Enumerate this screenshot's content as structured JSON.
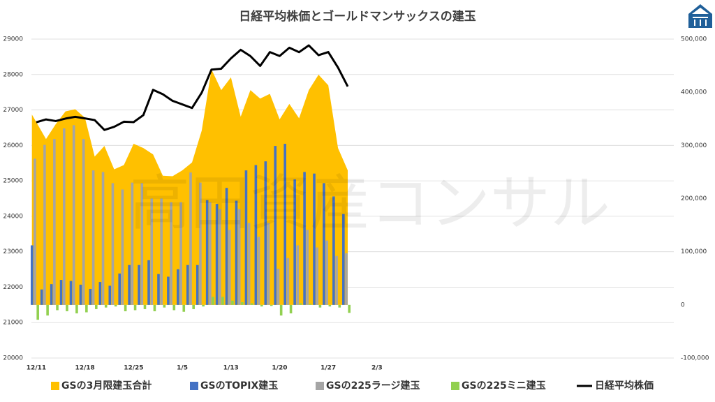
{
  "chart_data": {
    "type": "combo",
    "title": "日経平均株価とゴールドマンサックスの建玉",
    "watermark": "高田資産コンサル",
    "categories": [
      "12/11",
      null,
      null,
      null,
      null,
      "12/18",
      null,
      null,
      null,
      null,
      "12/25",
      null,
      null,
      null,
      null,
      "1/5",
      null,
      null,
      null,
      null,
      "1/13",
      null,
      null,
      null,
      null,
      "1/20",
      null,
      null,
      null,
      null,
      "1/27",
      null,
      null,
      null,
      null,
      "2/3",
      null,
      null,
      null,
      null,
      null,
      null,
      null,
      null,
      null,
      null,
      null,
      null,
      null,
      null,
      null,
      null,
      null,
      null,
      null,
      null,
      null,
      null,
      null,
      null,
      null,
      null,
      null,
      null,
      null,
      null
    ],
    "ylim": [
      20000,
      29000
    ],
    "yticks": [
      20000,
      21000,
      22000,
      23000,
      24000,
      25000,
      26000,
      27000,
      28000,
      29000
    ],
    "y2lim": [
      -100000,
      500000
    ],
    "y2ticks": [
      {
        "value": -100000,
        "label": "-100,000",
        "color": "#e00000"
      },
      {
        "value": 0,
        "label": "0"
      },
      {
        "value": 100000,
        "label": "100,000"
      },
      {
        "value": 200000,
        "label": "200,000"
      },
      {
        "value": 300000,
        "label": "300,000"
      },
      {
        "value": 400000,
        "label": "400,000"
      },
      {
        "value": 500000,
        "label": "500,000"
      }
    ],
    "grid": true,
    "legend": "bottom",
    "series": [
      {
        "name": "GSの3月限建玉合計",
        "type": "area",
        "axis": "y2",
        "color": "#ffc000",
        "values": [
          358000,
          312000,
          340000,
          364000,
          368000,
          352000,
          279000,
          299000,
          255000,
          263000,
          303000,
          295000,
          283000,
          243000,
          242000,
          253000,
          268000,
          328000,
          443000,
          404000,
          428000,
          354000,
          404000,
          388000,
          397000,
          349000,
          378000,
          351000,
          404000,
          433000,
          413000,
          295000,
          253000,
          null,
          null,
          null,
          null,
          null,
          null,
          null,
          null,
          null,
          null,
          null,
          null,
          null,
          null,
          null,
          null,
          null,
          null,
          null,
          null,
          null,
          null,
          null,
          null,
          null,
          null,
          null,
          null,
          null,
          null,
          null,
          null,
          null
        ]
      },
      {
        "name": "GSのTOPIX建玉",
        "type": "bar",
        "axis": "y2",
        "color": "#4472c4",
        "values": [
          112000,
          29000,
          39000,
          47000,
          45000,
          38000,
          30000,
          43000,
          36000,
          59000,
          75000,
          75000,
          84000,
          58000,
          53000,
          67000,
          75000,
          75000,
          197000,
          190000,
          220000,
          196000,
          253000,
          263000,
          270000,
          299000,
          303000,
          236000,
          250000,
          247000,
          229000,
          204000,
          171000,
          null,
          null,
          null,
          null,
          null,
          null,
          null,
          null,
          null,
          null,
          null,
          null,
          null,
          null,
          null,
          null,
          null,
          null,
          null,
          null,
          null,
          null,
          null,
          null,
          null,
          null,
          null,
          null,
          null,
          null,
          null,
          null,
          null
        ]
      },
      {
        "name": "GSの225ラージ建玉",
        "type": "bar",
        "axis": "y2",
        "color": "#a5a5a5",
        "values": [
          275000,
          301000,
          312000,
          332000,
          338000,
          312000,
          253000,
          250000,
          229000,
          217000,
          230000,
          229000,
          200000,
          200000,
          193000,
          193000,
          249000,
          230000,
          193000,
          180000,
          141000,
          180000,
          154000,
          128000,
          154000,
          68000,
          88000,
          112000,
          141000,
          108000,
          121000,
          92000,
          97000,
          null,
          null,
          null,
          null,
          null,
          null,
          null,
          null,
          null,
          null,
          null,
          null,
          null,
          null,
          null,
          null,
          null,
          null,
          null,
          null,
          null,
          null,
          null,
          null,
          null,
          null,
          null,
          null,
          null,
          null,
          null,
          null,
          null
        ]
      },
      {
        "name": "GSの225ミニ建玉",
        "type": "bar",
        "axis": "y2",
        "color": "#92d050",
        "values": [
          -28000,
          -20000,
          -10000,
          -12000,
          -16000,
          -14000,
          -8000,
          -5000,
          -3000,
          -12000,
          -10000,
          -8000,
          -12000,
          -5000,
          -10000,
          -13000,
          -8000,
          -3000,
          15000,
          15000,
          8000,
          5000,
          3000,
          -3000,
          -2000,
          -20000,
          -16000,
          3000,
          2000,
          -5000,
          -3000,
          -5000,
          -15000,
          null,
          null,
          null,
          null,
          null,
          null,
          null,
          null,
          null,
          null,
          null,
          null,
          null,
          null,
          null,
          null,
          null,
          null,
          null,
          null,
          null,
          null,
          null,
          null,
          null,
          null,
          null,
          null,
          null,
          null,
          null,
          null,
          null
        ]
      },
      {
        "name": "日経平均株価",
        "type": "line",
        "axis": "y",
        "color": "#000000",
        "values": [
          26652,
          26733,
          26687,
          26757,
          26806,
          26763,
          26714,
          26436,
          26524,
          26668,
          26656,
          26854,
          27568,
          27444,
          27258,
          27158,
          27055,
          27490,
          28139,
          28164,
          28456,
          28698,
          28519,
          28242,
          28633,
          28523,
          28756,
          28631,
          28822,
          28546,
          28635,
          28197,
          27663,
          null,
          null,
          null,
          null,
          null,
          null,
          null,
          null,
          null,
          null,
          null,
          null,
          null,
          null,
          null,
          null,
          null,
          null,
          null,
          null,
          null,
          null,
          null,
          null,
          null,
          null,
          null,
          null,
          null,
          null,
          null,
          null,
          null
        ]
      }
    ]
  }
}
